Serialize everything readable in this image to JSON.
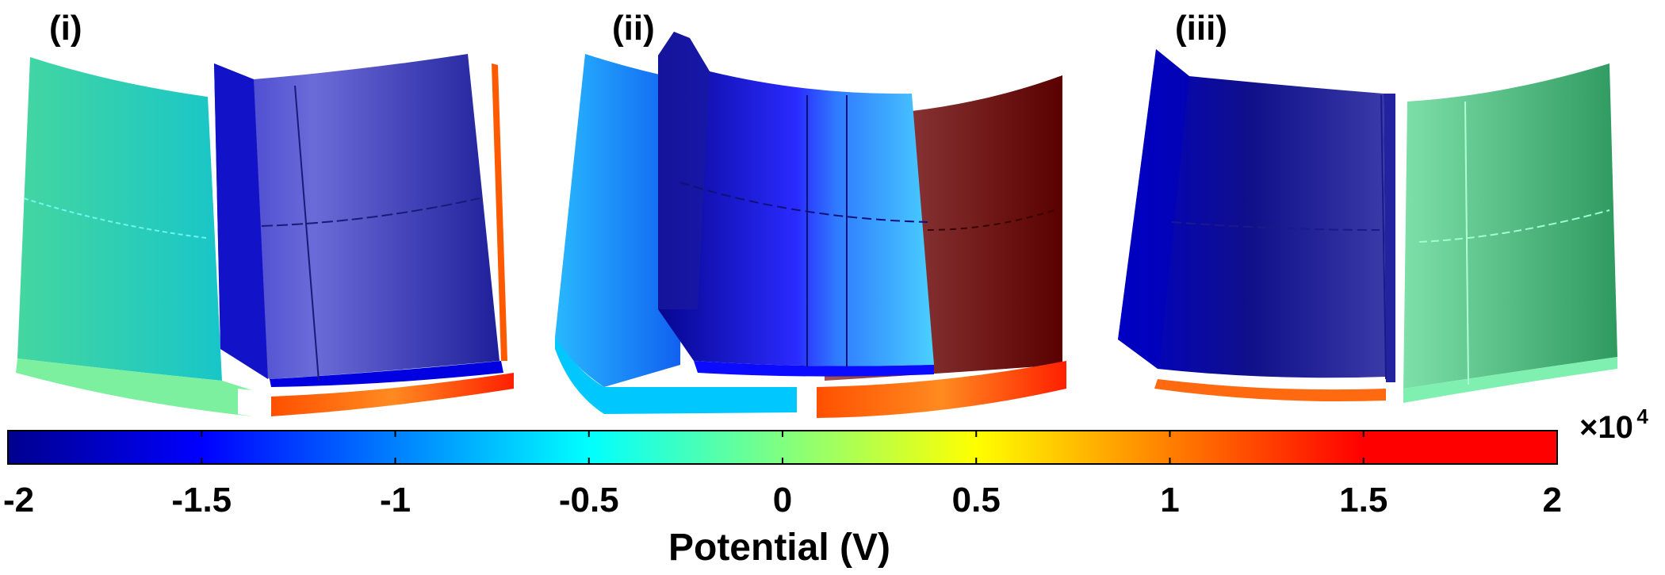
{
  "figure": {
    "panels": [
      {
        "label": "(i)"
      },
      {
        "label": "(ii)"
      },
      {
        "label": "(iii)"
      }
    ],
    "colorbar": {
      "min": -2,
      "max": 2,
      "ticks": [
        -2,
        -1.5,
        -1,
        -0.5,
        0,
        0.5,
        1,
        1.5,
        2
      ],
      "tick_labels": [
        "-2",
        "-1.5",
        "-1",
        "-0.5",
        "0",
        "0.5",
        "1",
        "1.5",
        "2"
      ],
      "multiplier_base": "×10",
      "multiplier_exponent": "4",
      "axis_label": "Potential (V)",
      "colormap": [
        "#00008f",
        "#0000ff",
        "#00ffff",
        "#80ff80",
        "#ffff00",
        "#ff8000",
        "#ff0000",
        "#800000"
      ]
    }
  }
}
